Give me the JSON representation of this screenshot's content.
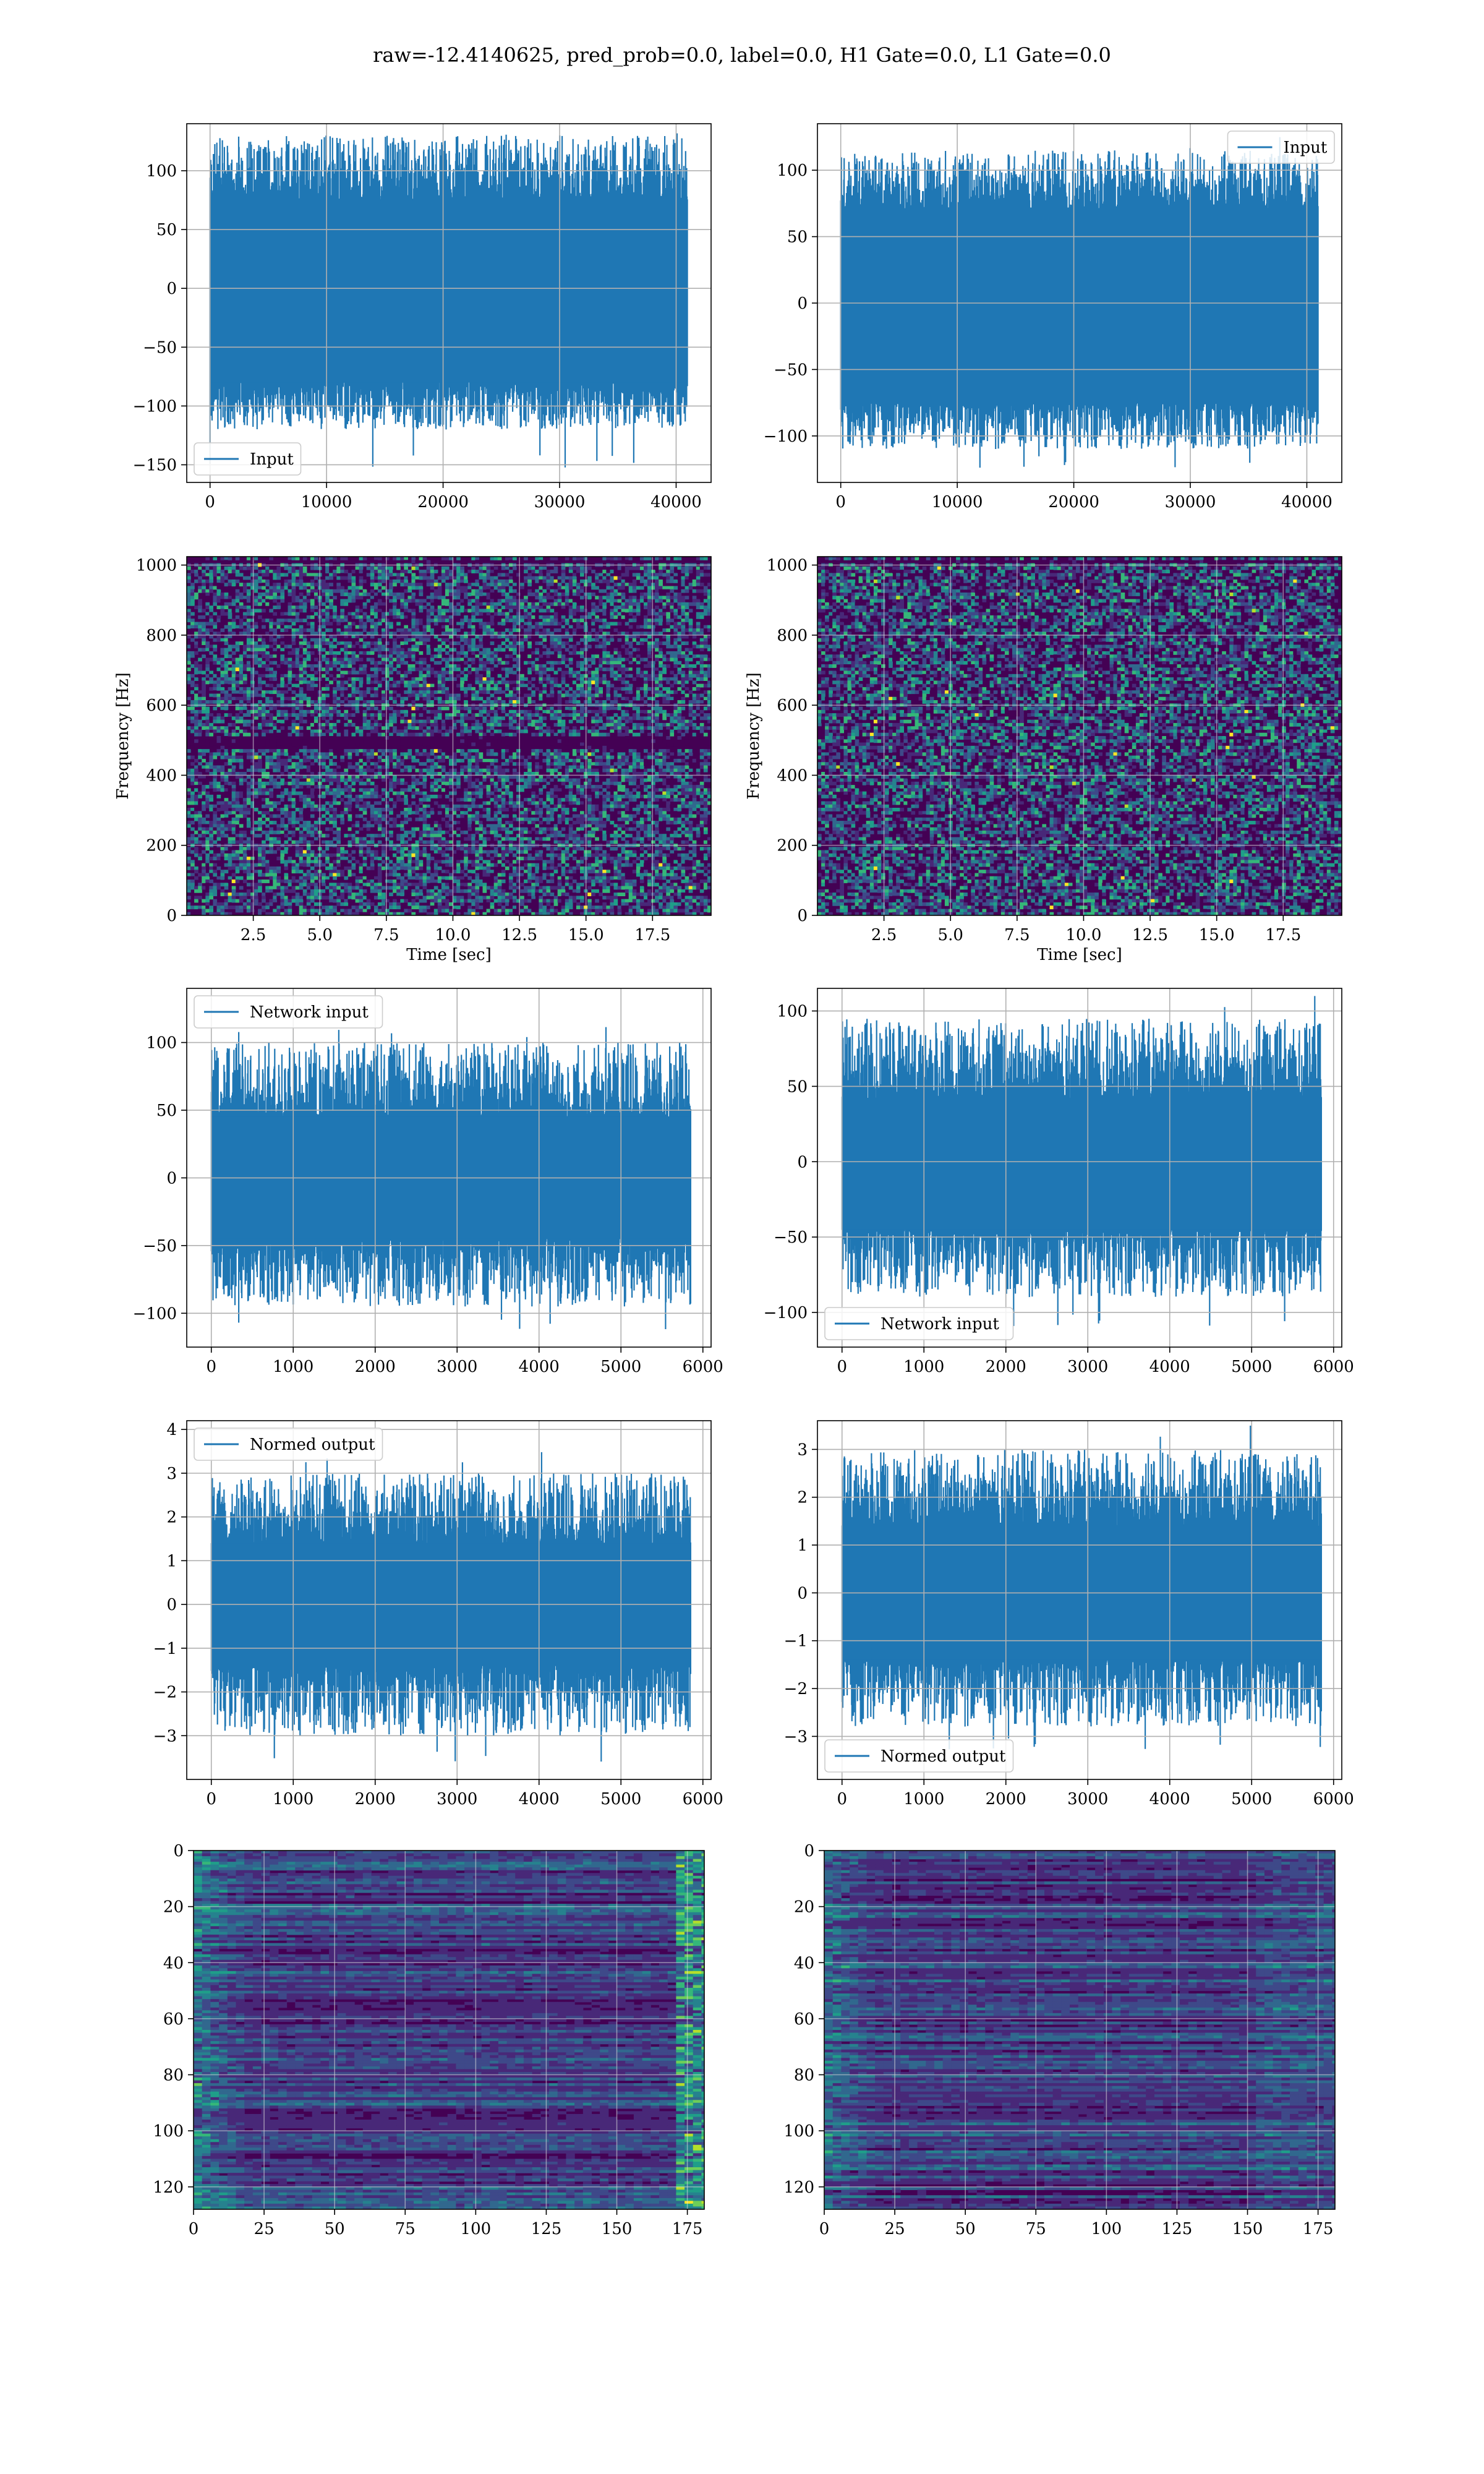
{
  "figure": {
    "title": "raw=-12.4140625, pred_prob=0.0, label=0.0, H1 Gate=0.0, L1 Gate=0.0"
  },
  "colors": {
    "series": "#1f77b4",
    "grid": "#b0b0b0",
    "viridis_low": "#440154",
    "viridis_mid": "#21918c",
    "viridis_high": "#fde725"
  },
  "chart_data": [
    {
      "id": "input-h1",
      "type": "line",
      "title": "",
      "xlabel": "",
      "ylabel": "",
      "xlim": [
        -2000,
        43000
      ],
      "ylim": [
        -165,
        140
      ],
      "xticks": [
        0,
        10000,
        20000,
        30000,
        40000
      ],
      "yticks": [
        100,
        50,
        0,
        -50,
        -100,
        -150
      ],
      "legend": {
        "placement": "lower-left",
        "entries": [
          "Input"
        ]
      },
      "grid": true,
      "series": [
        {
          "name": "Input",
          "x_range": [
            0,
            40960
          ],
          "envelope": [
            -80,
            75
          ],
          "typical_extremes": [
            -120,
            130
          ],
          "min": -153,
          "max": 132
        }
      ]
    },
    {
      "id": "input-l1",
      "type": "line",
      "title": "",
      "xlabel": "",
      "ylabel": "",
      "xlim": [
        -2000,
        43000
      ],
      "ylim": [
        -135,
        135
      ],
      "xticks": [
        0,
        10000,
        20000,
        30000,
        40000
      ],
      "yticks": [
        100,
        50,
        0,
        -50,
        -100
      ],
      "legend": {
        "placement": "upper-right",
        "entries": [
          "Input"
        ]
      },
      "grid": true,
      "series": [
        {
          "name": "Input",
          "x_range": [
            0,
            40960
          ],
          "envelope": [
            -75,
            70
          ],
          "typical_extremes": [
            -110,
            115
          ],
          "min": -125,
          "max": 125
        }
      ]
    },
    {
      "id": "spectrogram-h1",
      "type": "heatmap",
      "title": "",
      "xlabel": "Time [sec]",
      "ylabel": "Frequency [Hz]",
      "xlim": [
        0,
        19.7
      ],
      "ylim": [
        0,
        1024
      ],
      "xticks": [
        2.5,
        5.0,
        7.5,
        10.0,
        12.5,
        15.0,
        17.5
      ],
      "xtick_labels": [
        "2.5",
        "5.0",
        "7.5",
        "10.0",
        "12.5",
        "15.0",
        "17.5"
      ],
      "yticks": [
        0,
        200,
        400,
        600,
        800,
        1000
      ],
      "grid": true,
      "colormap": "viridis",
      "dark_bands_hz": [
        485,
        500,
        1010
      ]
    },
    {
      "id": "spectrogram-l1",
      "type": "heatmap",
      "title": "",
      "xlabel": "Time [sec]",
      "ylabel": "Frequency [Hz]",
      "xlim": [
        0,
        19.7
      ],
      "ylim": [
        0,
        1024
      ],
      "xticks": [
        2.5,
        5.0,
        7.5,
        10.0,
        12.5,
        15.0,
        17.5
      ],
      "xtick_labels": [
        "2.5",
        "5.0",
        "7.5",
        "10.0",
        "12.5",
        "15.0",
        "17.5"
      ],
      "yticks": [
        0,
        200,
        400,
        600,
        800,
        1000
      ],
      "grid": true,
      "colormap": "viridis",
      "dark_bands_hz": [
        1010
      ]
    },
    {
      "id": "network-input-h1",
      "type": "line",
      "title": "",
      "xlabel": "",
      "ylabel": "",
      "xlim": [
        -300,
        6100
      ],
      "ylim": [
        -125,
        140
      ],
      "xticks": [
        0,
        1000,
        2000,
        3000,
        4000,
        5000,
        6000
      ],
      "yticks": [
        100,
        50,
        0,
        -50,
        -100
      ],
      "legend": {
        "placement": "upper-left",
        "entries": [
          "Network input"
        ]
      },
      "grid": true,
      "series": [
        {
          "name": "Network input",
          "x_range": [
            0,
            5850
          ],
          "envelope": [
            -45,
            45
          ],
          "typical_extremes": [
            -95,
            100
          ],
          "min": -112,
          "max": 112
        }
      ]
    },
    {
      "id": "network-input-l1",
      "type": "line",
      "title": "",
      "xlabel": "",
      "ylabel": "",
      "xlim": [
        -300,
        6100
      ],
      "ylim": [
        -123,
        115
      ],
      "xticks": [
        0,
        1000,
        2000,
        3000,
        4000,
        5000,
        6000
      ],
      "yticks": [
        100,
        50,
        0,
        -50,
        -100
      ],
      "legend": {
        "placement": "lower-left",
        "entries": [
          "Network input"
        ]
      },
      "grid": true,
      "series": [
        {
          "name": "Network input",
          "x_range": [
            0,
            5850
          ],
          "envelope": [
            -45,
            42
          ],
          "typical_extremes": [
            -90,
            95
          ],
          "min": -110,
          "max": 110
        }
      ]
    },
    {
      "id": "normed-output-h1",
      "type": "line",
      "title": "",
      "xlabel": "",
      "ylabel": "",
      "xlim": [
        -300,
        6100
      ],
      "ylim": [
        -4.0,
        4.2
      ],
      "xticks": [
        0,
        1000,
        2000,
        3000,
        4000,
        5000,
        6000
      ],
      "yticks": [
        4,
        3,
        2,
        1,
        0,
        -1,
        -2,
        -3
      ],
      "legend": {
        "placement": "upper-left",
        "entries": [
          "Normed output"
        ]
      },
      "grid": true,
      "series": [
        {
          "name": "Normed output",
          "x_range": [
            0,
            5850
          ],
          "envelope": [
            -1.4,
            1.4
          ],
          "typical_extremes": [
            -3.0,
            3.0
          ],
          "min": -3.6,
          "max": 3.5
        }
      ]
    },
    {
      "id": "normed-output-l1",
      "type": "line",
      "title": "",
      "xlabel": "",
      "ylabel": "",
      "xlim": [
        -300,
        6100
      ],
      "ylim": [
        -3.9,
        3.6
      ],
      "xticks": [
        0,
        1000,
        2000,
        3000,
        4000,
        5000,
        6000
      ],
      "yticks": [
        3,
        2,
        1,
        0,
        -1,
        -2,
        -3
      ],
      "legend": {
        "placement": "lower-left",
        "entries": [
          "Normed output"
        ]
      },
      "grid": true,
      "series": [
        {
          "name": "Normed output",
          "x_range": [
            0,
            5850
          ],
          "envelope": [
            -1.4,
            1.4
          ],
          "typical_extremes": [
            -2.8,
            3.0
          ],
          "min": -3.3,
          "max": 3.5
        }
      ]
    },
    {
      "id": "feature-map-h1",
      "type": "heatmap",
      "title": "",
      "xlabel": "",
      "ylabel": "",
      "xlim": [
        0,
        181
      ],
      "ylim": [
        128,
        0
      ],
      "xticks": [
        0,
        25,
        50,
        75,
        100,
        125,
        150,
        175
      ],
      "yticks": [
        0,
        20,
        40,
        60,
        80,
        100,
        120
      ],
      "grid": true,
      "colormap": "viridis"
    },
    {
      "id": "feature-map-l1",
      "type": "heatmap",
      "title": "",
      "xlabel": "",
      "ylabel": "",
      "xlim": [
        0,
        181
      ],
      "ylim": [
        128,
        0
      ],
      "xticks": [
        0,
        25,
        50,
        75,
        100,
        125,
        150,
        175
      ],
      "yticks": [
        0,
        20,
        40,
        60,
        80,
        100,
        120
      ],
      "grid": true,
      "colormap": "viridis"
    }
  ]
}
